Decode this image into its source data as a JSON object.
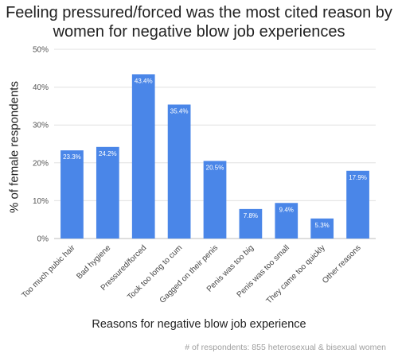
{
  "chart_data": {
    "type": "bar",
    "title_lines": [
      "Feeling pressured/forced was the most cited reason by",
      "women for negative blow job experiences"
    ],
    "xlabel": "Reasons for negative blow job experience",
    "ylabel": "% of female respondents",
    "categories": [
      "Too much pubic hair",
      "Bad hygiene",
      "Pressured/forced",
      "Took too long to cum",
      "Gagged on their penis",
      "Penis was too big",
      "Penis was too small",
      "They came too quickly",
      "Other reasons"
    ],
    "values": [
      23.3,
      24.2,
      43.4,
      35.4,
      20.5,
      7.8,
      9.4,
      5.3,
      17.9
    ],
    "data_labels": [
      "23.3%",
      "24.2%",
      "43.4%",
      "35.4%",
      "20.5%",
      "7.8%",
      "9.4%",
      "5.3%",
      "17.9%"
    ],
    "yticks": [
      0,
      10,
      20,
      30,
      40,
      50
    ],
    "ytick_labels": [
      "0%",
      "10%",
      "20%",
      "30%",
      "40%",
      "50%"
    ],
    "ylim": [
      0,
      50
    ],
    "grid": true,
    "bar_color": "#4a86e8",
    "footnote": "# of respondents: 855 heterosexual & bisexual women"
  }
}
